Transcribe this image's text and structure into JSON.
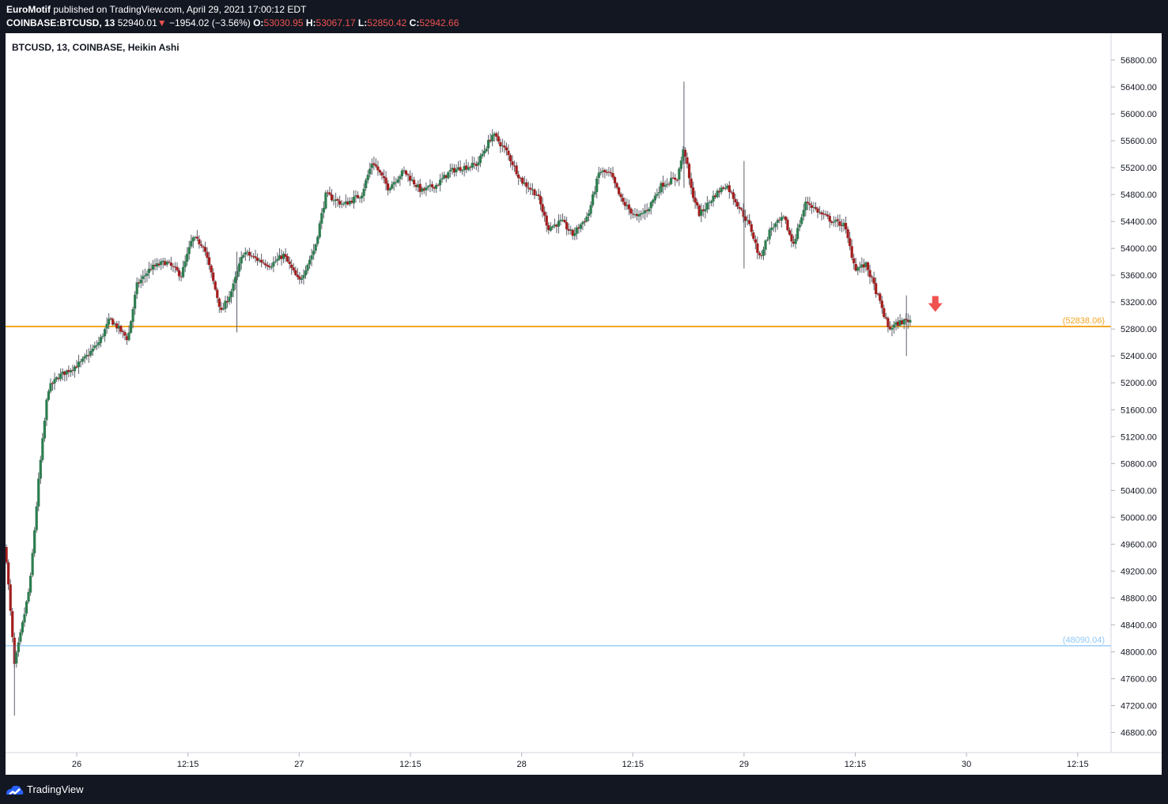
{
  "header": {
    "author": "EuroMotif",
    "published_text": "published on TradingView.com, April 29, 2021 17:00:12 EDT",
    "symbol": "COINBASE:BTCUSD, 13",
    "last_price": "52940.01",
    "change": "−1954.02 (−3.56%)",
    "change_arrow": "▼",
    "open_label": "O:",
    "open": "53030.95",
    "high_label": "H:",
    "high": "53067.17",
    "low_label": "L:",
    "low": "52850.42",
    "close_label": "C:",
    "close": "52942.66"
  },
  "chart_title": "BTCUSD, 13, COINBASE, Heikin Ashi",
  "footer": {
    "brand": "TradingView"
  },
  "colors": {
    "up": "#26a69a",
    "down": "#ef5350",
    "up_body": "#2e7d4f",
    "down_body": "#a31d1d",
    "wick": "#5d606b",
    "resistance": "#f5a623",
    "support": "#90caf9",
    "signal_arrow": "#ef5350",
    "header_red": "#ef5350"
  },
  "chart_data": {
    "type": "candlestick",
    "style": "Heikin Ashi",
    "timeframe_minutes": 13,
    "y_range": [
      46500,
      57200
    ],
    "y_ticks": [
      46800,
      47200,
      47600,
      48000,
      48400,
      48800,
      49200,
      49600,
      50000,
      50400,
      50800,
      51200,
      51600,
      52000,
      52400,
      52800,
      53200,
      53600,
      54000,
      54400,
      54800,
      55200,
      55600,
      56000,
      56400,
      56800
    ],
    "y_tick_labels": [
      "46800.00",
      "47200.00",
      "47600.00",
      "48000.00",
      "48400.00",
      "48800.00",
      "49200.00",
      "49600.00",
      "50000.00",
      "50400.00",
      "50800.00",
      "51200.00",
      "51600.00",
      "52000.00",
      "52400.00",
      "52800.00",
      "53200.00",
      "53600.00",
      "54000.00",
      "54400.00",
      "54800.00",
      "55200.00",
      "55600.00",
      "56000.00",
      "56400.00",
      "56800.00"
    ],
    "x_range_days": [
      25.68,
      30.65
    ],
    "x_ticks": [
      {
        "day": 26.0,
        "label": "26"
      },
      {
        "day": 26.5,
        "label": "12:15"
      },
      {
        "day": 27.0,
        "label": "27"
      },
      {
        "day": 27.5,
        "label": "12:15"
      },
      {
        "day": 28.0,
        "label": "28"
      },
      {
        "day": 28.5,
        "label": "12:15"
      },
      {
        "day": 29.0,
        "label": "29"
      },
      {
        "day": 29.5,
        "label": "12:15"
      },
      {
        "day": 30.0,
        "label": "30"
      },
      {
        "day": 30.5,
        "label": "12:15"
      }
    ],
    "price_path": [
      {
        "day": 25.68,
        "price": 49550
      },
      {
        "day": 25.72,
        "price": 47800
      },
      {
        "day": 25.75,
        "price": 48300
      },
      {
        "day": 25.79,
        "price": 49000
      },
      {
        "day": 25.83,
        "price": 50600
      },
      {
        "day": 25.87,
        "price": 51900
      },
      {
        "day": 25.92,
        "price": 52100
      },
      {
        "day": 26.02,
        "price": 52300
      },
      {
        "day": 26.1,
        "price": 52600
      },
      {
        "day": 26.15,
        "price": 52950
      },
      {
        "day": 26.23,
        "price": 52650
      },
      {
        "day": 26.27,
        "price": 53450
      },
      {
        "day": 26.33,
        "price": 53700
      },
      {
        "day": 26.4,
        "price": 53800
      },
      {
        "day": 26.47,
        "price": 53600
      },
      {
        "day": 26.52,
        "price": 54150
      },
      {
        "day": 26.57,
        "price": 54050
      },
      {
        "day": 26.65,
        "price": 53050
      },
      {
        "day": 26.7,
        "price": 53400
      },
      {
        "day": 26.75,
        "price": 53950
      },
      {
        "day": 26.8,
        "price": 53850
      },
      {
        "day": 26.87,
        "price": 53750
      },
      {
        "day": 26.93,
        "price": 53900
      },
      {
        "day": 27.0,
        "price": 53500
      },
      {
        "day": 27.07,
        "price": 54000
      },
      {
        "day": 27.12,
        "price": 54800
      },
      {
        "day": 27.2,
        "price": 54650
      },
      {
        "day": 27.28,
        "price": 54800
      },
      {
        "day": 27.33,
        "price": 55300
      },
      {
        "day": 27.4,
        "price": 54900
      },
      {
        "day": 27.47,
        "price": 55150
      },
      {
        "day": 27.55,
        "price": 54850
      },
      {
        "day": 27.62,
        "price": 54950
      },
      {
        "day": 27.68,
        "price": 55150
      },
      {
        "day": 27.73,
        "price": 55200
      },
      {
        "day": 27.8,
        "price": 55250
      },
      {
        "day": 27.87,
        "price": 55700
      },
      {
        "day": 27.93,
        "price": 55450
      },
      {
        "day": 28.0,
        "price": 55000
      },
      {
        "day": 28.07,
        "price": 54800
      },
      {
        "day": 28.12,
        "price": 54300
      },
      {
        "day": 28.18,
        "price": 54400
      },
      {
        "day": 28.23,
        "price": 54200
      },
      {
        "day": 28.3,
        "price": 54500
      },
      {
        "day": 28.35,
        "price": 55150
      },
      {
        "day": 28.4,
        "price": 55100
      },
      {
        "day": 28.45,
        "price": 54700
      },
      {
        "day": 28.52,
        "price": 54450
      },
      {
        "day": 28.57,
        "price": 54600
      },
      {
        "day": 28.63,
        "price": 54950
      },
      {
        "day": 28.7,
        "price": 55050
      },
      {
        "day": 28.73,
        "price": 55500
      },
      {
        "day": 28.76,
        "price": 54900
      },
      {
        "day": 28.8,
        "price": 54500
      },
      {
        "day": 28.87,
        "price": 54800
      },
      {
        "day": 28.92,
        "price": 54950
      },
      {
        "day": 28.98,
        "price": 54600
      },
      {
        "day": 29.03,
        "price": 54300
      },
      {
        "day": 29.07,
        "price": 53850
      },
      {
        "day": 29.12,
        "price": 54300
      },
      {
        "day": 29.18,
        "price": 54450
      },
      {
        "day": 29.22,
        "price": 54050
      },
      {
        "day": 29.28,
        "price": 54700
      },
      {
        "day": 29.35,
        "price": 54500
      },
      {
        "day": 29.4,
        "price": 54400
      },
      {
        "day": 29.45,
        "price": 54350
      },
      {
        "day": 29.5,
        "price": 53700
      },
      {
        "day": 29.55,
        "price": 53750
      },
      {
        "day": 29.6,
        "price": 53300
      },
      {
        "day": 29.65,
        "price": 52800
      },
      {
        "day": 29.7,
        "price": 52900
      },
      {
        "day": 29.75,
        "price": 52940
      }
    ],
    "wick_spikes": [
      {
        "day": 29.0,
        "high": 55300,
        "low": 53700
      },
      {
        "day": 28.73,
        "high": 56480,
        "low": 54900
      },
      {
        "day": 25.72,
        "high": 48100,
        "low": 47050
      },
      {
        "day": 26.72,
        "high": 53950,
        "low": 52750
      },
      {
        "day": 29.73,
        "high": 53300,
        "low": 52400
      }
    ],
    "horizontal_lines": [
      {
        "name": "resistance",
        "price": 52838.06,
        "label": "(52838.06)"
      },
      {
        "name": "support",
        "price": 48090.04,
        "label": "(48090.04)"
      }
    ],
    "signal_arrow": {
      "direction": "down",
      "day": 29.86,
      "price": 53150
    }
  }
}
